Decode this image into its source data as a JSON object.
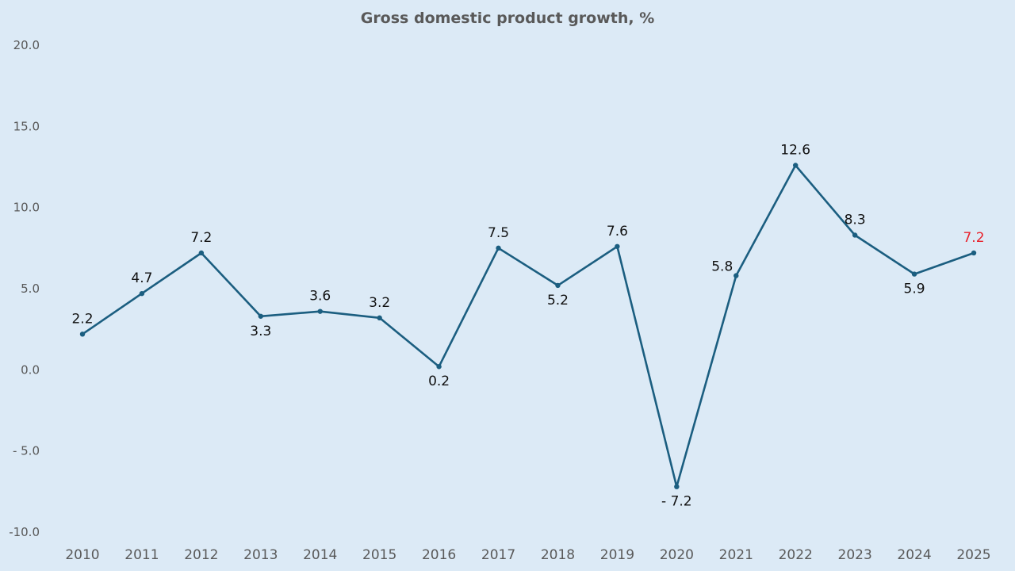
{
  "chart_data": {
    "type": "line",
    "title": "Gross domestic product growth, %",
    "xlabel": "",
    "ylabel": "",
    "x": [
      "2010",
      "2011",
      "2012",
      "2013",
      "2014",
      "2015",
      "2016",
      "2017",
      "2018",
      "2019",
      "2020",
      "2021",
      "2022",
      "2023",
      "2024",
      "2025"
    ],
    "series": [
      {
        "values": [
          2.2,
          4.7,
          7.2,
          3.3,
          3.6,
          3.2,
          0.2,
          7.5,
          5.2,
          7.6,
          -7.2,
          5.8,
          12.6,
          8.3,
          5.9,
          7.2
        ],
        "color": "#1b5e80"
      }
    ],
    "data_labels": [
      "2.2",
      "4.7",
      "7.2",
      "3.3",
      "3.6",
      "3.2",
      "0.2",
      "7.5",
      "5.2",
      "7.6",
      "- 7.2",
      "5.8",
      "12.6",
      "8.3",
      "5.9",
      "7.2"
    ],
    "highlight_label_color": "#e8212b",
    "highlighted_index": 15,
    "ylim": [
      -10,
      20
    ],
    "yticks": [
      20,
      15,
      10,
      5,
      0,
      -5,
      -10
    ],
    "ytick_labels": [
      "20.0",
      "15.0",
      "10.0",
      "5.0",
      "0.0",
      "- 5.0",
      "-10.0"
    ],
    "grid": false,
    "legend": "none"
  }
}
